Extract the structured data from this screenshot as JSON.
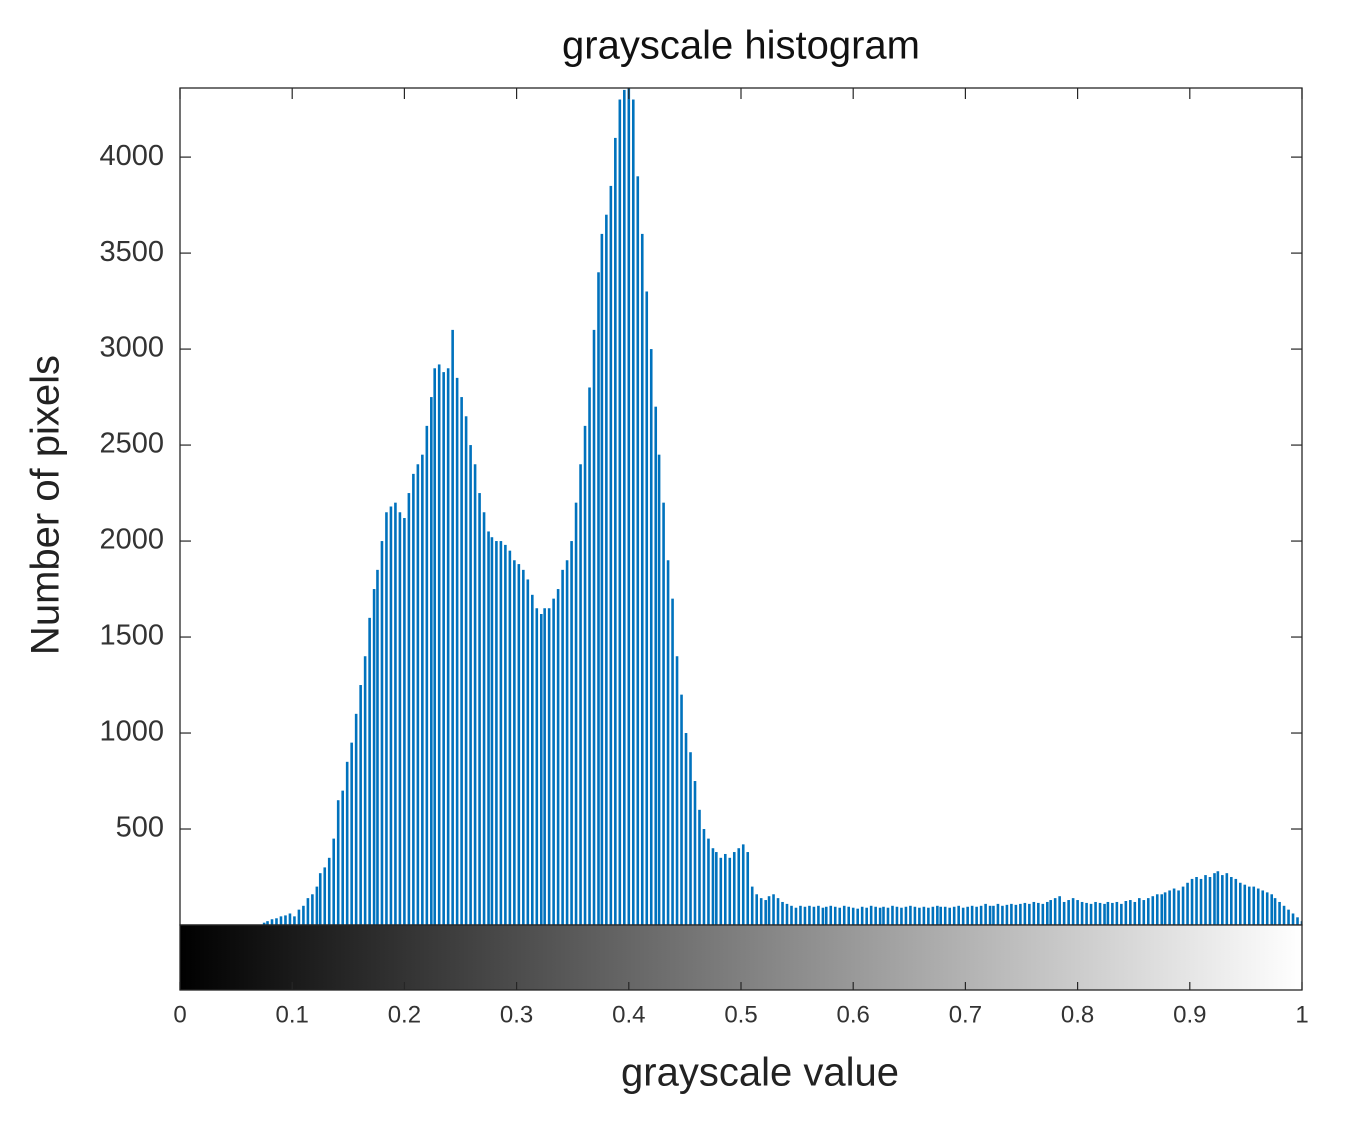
{
  "chart_data": {
    "type": "bar",
    "title": "grayscale histogram",
    "x_label": "grayscale value",
    "y_label": "Number of pixels",
    "color": "#0072bd",
    "xlim": [
      0,
      1
    ],
    "ylim": [
      0,
      4360
    ],
    "xticks": [
      0,
      0.1,
      0.2,
      0.3,
      0.4,
      0.5,
      0.6,
      0.7,
      0.8,
      0.9,
      1
    ],
    "yticks": [
      500,
      1000,
      1500,
      2000,
      2500,
      3000,
      3500,
      4000
    ],
    "grid": false,
    "x": [
      0,
      0.004,
      0.008,
      0.012,
      0.016,
      0.02,
      0.024,
      0.027,
      0.031,
      0.035,
      0.039,
      0.043,
      0.047,
      0.051,
      0.055,
      0.059,
      0.063,
      0.067,
      0.071,
      0.075,
      0.078,
      0.082,
      0.086,
      0.09,
      0.094,
      0.098,
      0.102,
      0.106,
      0.11,
      0.114,
      0.118,
      0.122,
      0.125,
      0.129,
      0.133,
      0.137,
      0.141,
      0.145,
      0.149,
      0.153,
      0.157,
      0.161,
      0.165,
      0.169,
      0.173,
      0.176,
      0.18,
      0.184,
      0.188,
      0.192,
      0.196,
      0.2,
      0.204,
      0.208,
      0.212,
      0.216,
      0.22,
      0.224,
      0.227,
      0.231,
      0.235,
      0.239,
      0.243,
      0.247,
      0.251,
      0.255,
      0.259,
      0.263,
      0.267,
      0.271,
      0.275,
      0.278,
      0.282,
      0.286,
      0.29,
      0.294,
      0.298,
      0.302,
      0.306,
      0.31,
      0.314,
      0.318,
      0.322,
      0.325,
      0.329,
      0.333,
      0.337,
      0.341,
      0.345,
      0.349,
      0.353,
      0.357,
      0.361,
      0.365,
      0.369,
      0.373,
      0.376,
      0.38,
      0.384,
      0.388,
      0.392,
      0.396,
      0.4,
      0.404,
      0.408,
      0.412,
      0.416,
      0.42,
      0.424,
      0.427,
      0.431,
      0.435,
      0.439,
      0.443,
      0.447,
      0.451,
      0.455,
      0.459,
      0.463,
      0.467,
      0.471,
      0.475,
      0.478,
      0.482,
      0.486,
      0.49,
      0.494,
      0.498,
      0.502,
      0.506,
      0.51,
      0.514,
      0.518,
      0.522,
      0.525,
      0.529,
      0.533,
      0.537,
      0.541,
      0.545,
      0.549,
      0.553,
      0.557,
      0.561,
      0.565,
      0.569,
      0.573,
      0.576,
      0.58,
      0.584,
      0.588,
      0.592,
      0.596,
      0.6,
      0.604,
      0.608,
      0.612,
      0.616,
      0.62,
      0.624,
      0.627,
      0.631,
      0.635,
      0.639,
      0.643,
      0.647,
      0.651,
      0.655,
      0.659,
      0.663,
      0.667,
      0.671,
      0.675,
      0.678,
      0.682,
      0.686,
      0.69,
      0.694,
      0.698,
      0.702,
      0.706,
      0.71,
      0.714,
      0.718,
      0.722,
      0.725,
      0.729,
      0.733,
      0.737,
      0.741,
      0.745,
      0.749,
      0.753,
      0.757,
      0.761,
      0.765,
      0.769,
      0.773,
      0.776,
      0.78,
      0.784,
      0.788,
      0.792,
      0.796,
      0.8,
      0.804,
      0.808,
      0.812,
      0.816,
      0.82,
      0.824,
      0.827,
      0.831,
      0.835,
      0.839,
      0.843,
      0.847,
      0.851,
      0.855,
      0.859,
      0.863,
      0.867,
      0.871,
      0.875,
      0.878,
      0.882,
      0.886,
      0.89,
      0.894,
      0.898,
      0.902,
      0.906,
      0.91,
      0.914,
      0.918,
      0.922,
      0.925,
      0.929,
      0.933,
      0.937,
      0.941,
      0.945,
      0.949,
      0.953,
      0.957,
      0.961,
      0.965,
      0.969,
      0.973,
      0.976,
      0.98,
      0.984,
      0.988,
      0.992,
      0.996,
      1
    ],
    "values": [
      0,
      0,
      0,
      0,
      0,
      0,
      0,
      0,
      0,
      0,
      0,
      0,
      0,
      0,
      0,
      0,
      0,
      0,
      0,
      12,
      20,
      30,
      35,
      45,
      50,
      60,
      45,
      80,
      100,
      140,
      160,
      200,
      270,
      300,
      350,
      450,
      650,
      700,
      850,
      950,
      1100,
      1250,
      1400,
      1600,
      1750,
      1850,
      2000,
      2150,
      2180,
      2200,
      2150,
      2120,
      2250,
      2350,
      2400,
      2450,
      2600,
      2750,
      2900,
      2920,
      2880,
      2900,
      3100,
      2850,
      2750,
      2650,
      2500,
      2400,
      2250,
      2150,
      2050,
      2020,
      2000,
      2000,
      1980,
      1950,
      1900,
      1880,
      1850,
      1800,
      1720,
      1650,
      1620,
      1650,
      1650,
      1700,
      1750,
      1850,
      1900,
      2000,
      2200,
      2400,
      2600,
      2800,
      3100,
      3400,
      3600,
      3700,
      3850,
      4100,
      4300,
      4350,
      4420,
      4300,
      3900,
      3600,
      3300,
      3000,
      2700,
      2450,
      2200,
      1900,
      1700,
      1400,
      1200,
      1000,
      900,
      750,
      600,
      500,
      450,
      400,
      380,
      350,
      370,
      350,
      380,
      400,
      420,
      380,
      200,
      160,
      140,
      130,
      150,
      160,
      140,
      120,
      110,
      100,
      90,
      100,
      95,
      100,
      95,
      100,
      90,
      95,
      100,
      95,
      90,
      100,
      95,
      90,
      85,
      95,
      90,
      100,
      95,
      90,
      95,
      90,
      100,
      95,
      90,
      95,
      100,
      95,
      90,
      95,
      90,
      95,
      100,
      95,
      95,
      90,
      95,
      100,
      90,
      95,
      100,
      95,
      100,
      110,
      100,
      100,
      110,
      100,
      105,
      110,
      105,
      110,
      115,
      110,
      120,
      115,
      110,
      120,
      130,
      140,
      150,
      120,
      130,
      140,
      130,
      120,
      115,
      110,
      120,
      115,
      110,
      120,
      115,
      120,
      110,
      125,
      130,
      120,
      140,
      130,
      140,
      150,
      160,
      160,
      170,
      180,
      190,
      180,
      200,
      220,
      240,
      250,
      240,
      260,
      250,
      270,
      280,
      260,
      270,
      250,
      240,
      220,
      210,
      200,
      200,
      190,
      180,
      170,
      160,
      140,
      120,
      100,
      80,
      60,
      40,
      20
    ]
  }
}
